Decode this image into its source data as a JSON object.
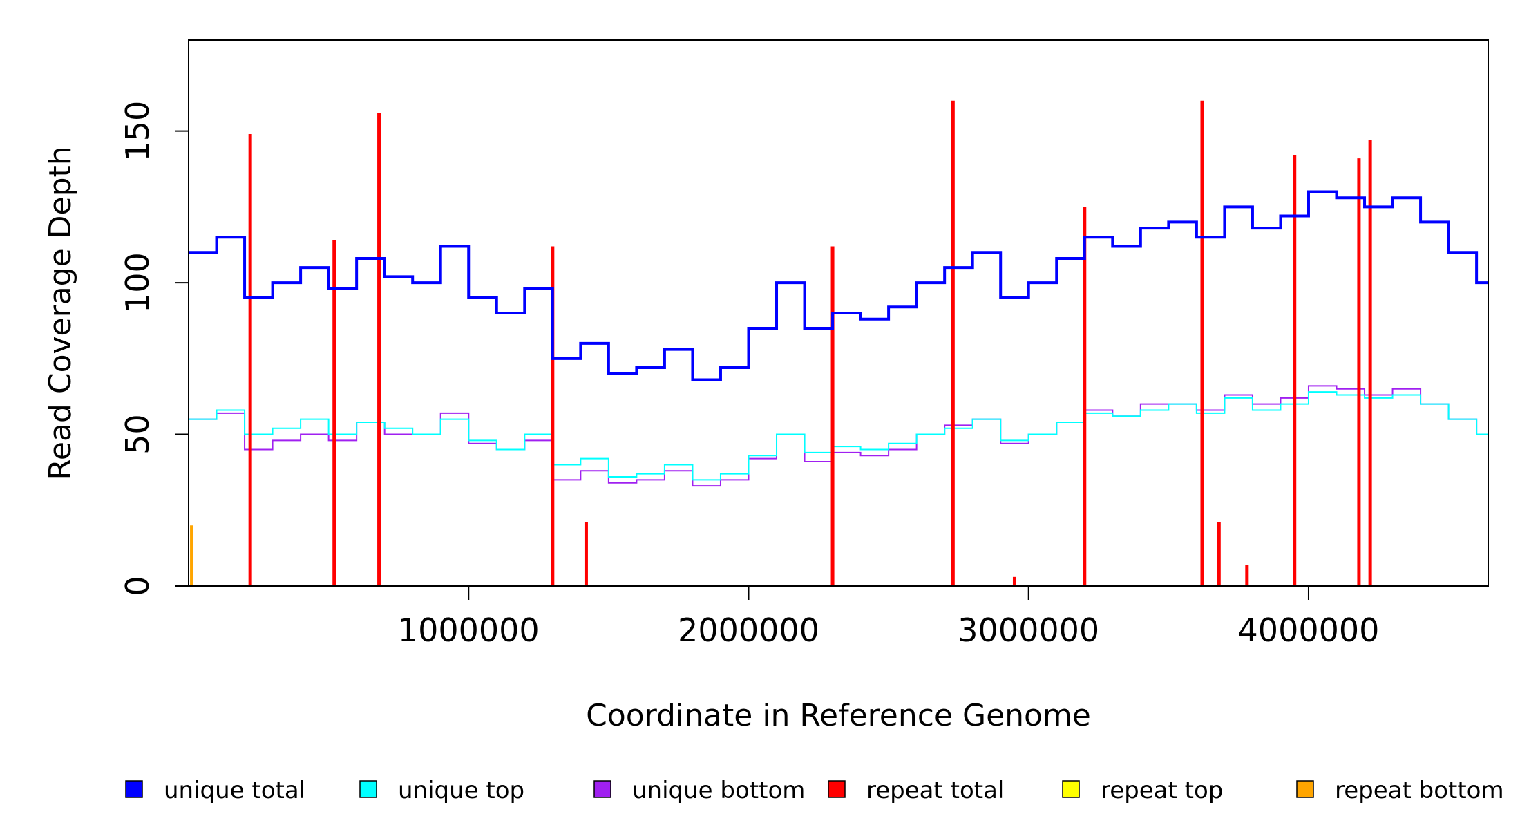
{
  "chart_data": {
    "type": "line",
    "style": "step",
    "title": "",
    "xlabel": "Coordinate in Reference Genome",
    "ylabel": "Read Coverage Depth",
    "xlim": [
      0,
      4641652
    ],
    "ylim": [
      0,
      180
    ],
    "xticks": [
      1000000,
      2000000,
      3000000,
      4000000
    ],
    "xtick_labels": [
      "1000000",
      "2000000",
      "3000000",
      "4000000"
    ],
    "yticks": [
      0,
      50,
      100,
      150
    ],
    "ytick_labels": [
      "0",
      "50",
      "100",
      "150"
    ],
    "grid": false,
    "legend_position": "bottom",
    "series": [
      {
        "name": "unique total",
        "color": "#0000ff",
        "x": [
          0,
          100000,
          200000,
          300000,
          400000,
          500000,
          600000,
          700000,
          800000,
          900000,
          1000000,
          1100000,
          1200000,
          1300000,
          1400000,
          1500000,
          1600000,
          1700000,
          1800000,
          1900000,
          2000000,
          2100000,
          2200000,
          2300000,
          2400000,
          2500000,
          2600000,
          2700000,
          2800000,
          2900000,
          3000000,
          3100000,
          3200000,
          3300000,
          3400000,
          3500000,
          3600000,
          3700000,
          3800000,
          3900000,
          4000000,
          4100000,
          4200000,
          4300000,
          4400000,
          4500000,
          4600000
        ],
        "values": [
          110,
          115,
          95,
          100,
          105,
          98,
          108,
          102,
          100,
          112,
          95,
          90,
          98,
          75,
          80,
          70,
          72,
          78,
          68,
          72,
          85,
          100,
          85,
          90,
          88,
          92,
          100,
          105,
          110,
          95,
          100,
          108,
          115,
          112,
          118,
          120,
          115,
          125,
          118,
          122,
          130,
          128,
          125,
          128,
          120,
          110,
          100
        ]
      },
      {
        "name": "unique top",
        "color": "#00ffff",
        "x": [
          0,
          100000,
          200000,
          300000,
          400000,
          500000,
          600000,
          700000,
          800000,
          900000,
          1000000,
          1100000,
          1200000,
          1300000,
          1400000,
          1500000,
          1600000,
          1700000,
          1800000,
          1900000,
          2000000,
          2100000,
          2200000,
          2300000,
          2400000,
          2500000,
          2600000,
          2700000,
          2800000,
          2900000,
          3000000,
          3100000,
          3200000,
          3300000,
          3400000,
          3500000,
          3600000,
          3700000,
          3800000,
          3900000,
          4000000,
          4100000,
          4200000,
          4300000,
          4400000,
          4500000,
          4600000
        ],
        "values": [
          55,
          58,
          50,
          52,
          55,
          50,
          54,
          52,
          50,
          55,
          48,
          45,
          50,
          40,
          42,
          36,
          37,
          40,
          35,
          37,
          43,
          50,
          44,
          46,
          45,
          47,
          50,
          52,
          55,
          48,
          50,
          54,
          57,
          56,
          58,
          60,
          57,
          62,
          58,
          60,
          64,
          63,
          62,
          63,
          60,
          55,
          50
        ]
      },
      {
        "name": "unique bottom",
        "color": "#a020f0",
        "x": [
          0,
          100000,
          200000,
          300000,
          400000,
          500000,
          600000,
          700000,
          800000,
          900000,
          1000000,
          1100000,
          1200000,
          1300000,
          1400000,
          1500000,
          1600000,
          1700000,
          1800000,
          1900000,
          2000000,
          2100000,
          2200000,
          2300000,
          2400000,
          2500000,
          2600000,
          2700000,
          2800000,
          2900000,
          3000000,
          3100000,
          3200000,
          3300000,
          3400000,
          3500000,
          3600000,
          3700000,
          3800000,
          3900000,
          4000000,
          4100000,
          4200000,
          4300000,
          4400000,
          4500000,
          4600000
        ],
        "values": [
          55,
          57,
          45,
          48,
          50,
          48,
          54,
          50,
          50,
          57,
          47,
          45,
          48,
          35,
          38,
          34,
          35,
          38,
          33,
          35,
          42,
          50,
          41,
          44,
          43,
          45,
          50,
          53,
          55,
          47,
          50,
          54,
          58,
          56,
          60,
          60,
          58,
          63,
          60,
          62,
          66,
          65,
          63,
          65,
          60,
          55,
          50
        ]
      },
      {
        "name": "repeat total",
        "color": "#ff0000",
        "x": [
          220000,
          520000,
          680000,
          1300000,
          1420000,
          2300000,
          2730000,
          2950000,
          3200000,
          3620000,
          3680000,
          3780000,
          3950000,
          4180000,
          4220000
        ],
        "values": [
          149,
          114,
          156,
          112,
          21,
          112,
          160,
          3,
          125,
          160,
          21,
          7,
          142,
          141,
          147
        ]
      },
      {
        "name": "repeat top",
        "color": "#ffff00",
        "x": [
          0,
          4641652
        ],
        "values": [
          0,
          0
        ]
      },
      {
        "name": "repeat bottom",
        "color": "#ffa500",
        "x": [
          10000,
          1420000,
          3680000,
          3780000
        ],
        "values": [
          20,
          11,
          12,
          3
        ]
      }
    ]
  }
}
